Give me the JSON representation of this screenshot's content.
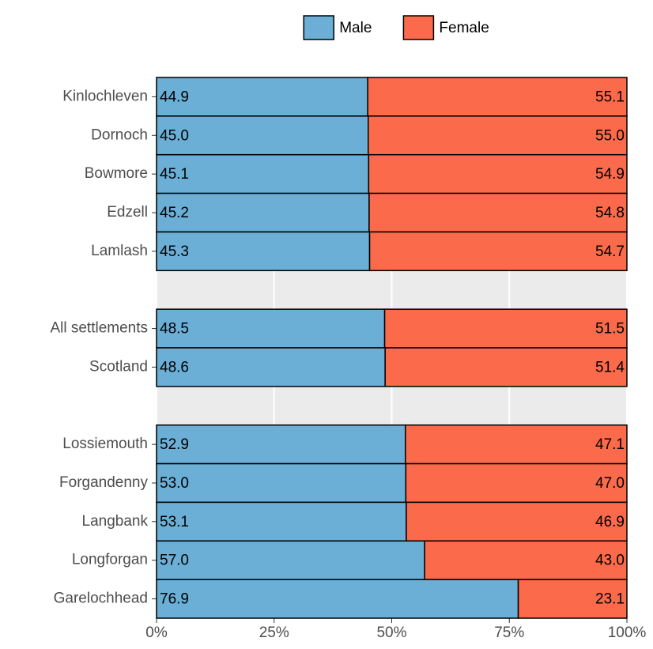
{
  "chart_data": {
    "type": "bar",
    "orientation": "horizontal",
    "stacked": true,
    "categories": [
      "Kinlochleven",
      "Dornoch",
      "Bowmore",
      "Edzell",
      "Lamlash",
      null,
      "All settlements",
      "Scotland",
      null,
      "Lossiemouth",
      "Forgandenny",
      "Langbank",
      "Longforgan",
      "Garelochhead"
    ],
    "series": [
      {
        "name": "Male",
        "color": "#6baed6",
        "values": [
          44.9,
          45.0,
          45.1,
          45.2,
          45.3,
          null,
          48.5,
          48.6,
          null,
          52.9,
          53.0,
          53.1,
          57.0,
          76.9
        ],
        "value_labels": [
          "44.9",
          "45.0",
          "45.1",
          "45.2",
          "45.3",
          null,
          "48.5",
          "48.6",
          null,
          "52.9",
          "53.0",
          "53.1",
          "57.0",
          "76.9"
        ]
      },
      {
        "name": "Female",
        "color": "#fb6a4a",
        "values": [
          55.1,
          55.0,
          54.9,
          54.8,
          54.7,
          null,
          51.5,
          51.4,
          null,
          47.1,
          47.0,
          46.9,
          43.0,
          23.1
        ],
        "value_labels": [
          "55.1",
          "55.0",
          "54.9",
          "54.8",
          "54.7",
          null,
          "51.5",
          "51.4",
          null,
          "47.1",
          "47.0",
          "46.9",
          "43.0",
          "23.1"
        ]
      }
    ],
    "xlim": [
      0,
      100
    ],
    "xticks": [
      {
        "value": 0,
        "label": "0%"
      },
      {
        "value": 25,
        "label": "25%"
      },
      {
        "value": 50,
        "label": "50%"
      },
      {
        "value": 75,
        "label": "75%"
      },
      {
        "value": 100,
        "label": "100%"
      }
    ],
    "grid": true,
    "legend": "top"
  }
}
